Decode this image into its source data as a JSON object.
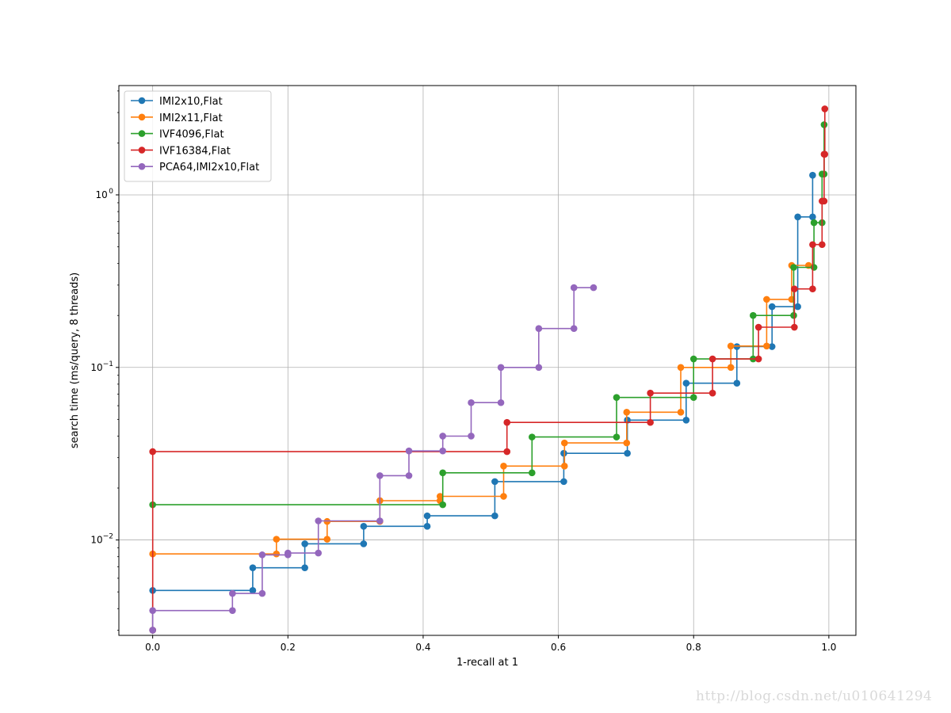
{
  "chart_data": {
    "type": "line",
    "style": "step",
    "xlabel": "1-recall at 1",
    "ylabel": "search time (ms/query, 8 threads)",
    "xlim": [
      -0.05,
      1.04
    ],
    "ylim": [
      0.0028,
      4.3
    ],
    "yscale": "log",
    "xticks": [
      {
        "value": 0.0,
        "label": "0.0"
      },
      {
        "value": 0.2,
        "label": "0.2"
      },
      {
        "value": 0.4,
        "label": "0.4"
      },
      {
        "value": 0.6,
        "label": "0.6"
      },
      {
        "value": 0.8,
        "label": "0.8"
      },
      {
        "value": 1.0,
        "label": "1.0"
      }
    ],
    "yticks": [
      {
        "value": 0.01,
        "label": "10",
        "exp": "−2"
      },
      {
        "value": 0.1,
        "label": "10",
        "exp": "−1"
      },
      {
        "value": 1,
        "label": "10",
        "exp": "0"
      }
    ],
    "grid": true,
    "legend_position": "top-left",
    "series": [
      {
        "name": "IMI2x10,Flat",
        "color": "#1f77b4",
        "points": [
          [
            0.0,
            0.003
          ],
          [
            0.0,
            0.0051
          ],
          [
            0.148,
            0.0051
          ],
          [
            0.148,
            0.0069
          ],
          [
            0.225,
            0.0069
          ],
          [
            0.225,
            0.0095
          ],
          [
            0.312,
            0.0095
          ],
          [
            0.312,
            0.012
          ],
          [
            0.406,
            0.012
          ],
          [
            0.406,
            0.0138
          ],
          [
            0.506,
            0.0138
          ],
          [
            0.506,
            0.0218
          ],
          [
            0.608,
            0.0218
          ],
          [
            0.608,
            0.0318
          ],
          [
            0.702,
            0.0318
          ],
          [
            0.702,
            0.0495
          ],
          [
            0.789,
            0.0495
          ],
          [
            0.789,
            0.081
          ],
          [
            0.864,
            0.081
          ],
          [
            0.864,
            0.132
          ],
          [
            0.916,
            0.132
          ],
          [
            0.916,
            0.225
          ],
          [
            0.954,
            0.225
          ],
          [
            0.954,
            0.745
          ],
          [
            0.976,
            0.745
          ],
          [
            0.976,
            1.3
          ]
        ]
      },
      {
        "name": "IMI2x11,Flat",
        "color": "#ff7f0e",
        "points": [
          [
            0.0,
            0.0083
          ],
          [
            0.183,
            0.0083
          ],
          [
            0.183,
            0.0101
          ],
          [
            0.258,
            0.0101
          ],
          [
            0.258,
            0.0128
          ],
          [
            0.336,
            0.0128
          ],
          [
            0.336,
            0.0169
          ],
          [
            0.425,
            0.0169
          ],
          [
            0.425,
            0.0179
          ],
          [
            0.519,
            0.0179
          ],
          [
            0.519,
            0.0268
          ],
          [
            0.609,
            0.0268
          ],
          [
            0.609,
            0.0365
          ],
          [
            0.701,
            0.0365
          ],
          [
            0.701,
            0.055
          ],
          [
            0.781,
            0.055
          ],
          [
            0.781,
            0.1
          ],
          [
            0.855,
            0.1
          ],
          [
            0.855,
            0.133
          ],
          [
            0.908,
            0.133
          ],
          [
            0.908,
            0.248
          ],
          [
            0.945,
            0.248
          ],
          [
            0.945,
            0.39
          ],
          [
            0.97,
            0.39
          ]
        ]
      },
      {
        "name": "IVF4096,Flat",
        "color": "#2ca02c",
        "points": [
          [
            0.0,
            0.016
          ],
          [
            0.429,
            0.016
          ],
          [
            0.429,
            0.0245
          ],
          [
            0.561,
            0.0245
          ],
          [
            0.561,
            0.0395
          ],
          [
            0.686,
            0.0395
          ],
          [
            0.686,
            0.067
          ],
          [
            0.8,
            0.067
          ],
          [
            0.8,
            0.112
          ],
          [
            0.888,
            0.112
          ],
          [
            0.888,
            0.2
          ],
          [
            0.948,
            0.2
          ],
          [
            0.948,
            0.38
          ],
          [
            0.978,
            0.38
          ],
          [
            0.978,
            0.69
          ],
          [
            0.99,
            0.69
          ],
          [
            0.99,
            1.32
          ],
          [
            0.993,
            1.32
          ],
          [
            0.993,
            2.55
          ]
        ]
      },
      {
        "name": "IVF16384,Flat",
        "color": "#d62728",
        "points": [
          [
            0.0,
            0.003
          ],
          [
            0.0,
            0.0325
          ],
          [
            0.524,
            0.0325
          ],
          [
            0.524,
            0.048
          ],
          [
            0.736,
            0.048
          ],
          [
            0.736,
            0.071
          ],
          [
            0.828,
            0.071
          ],
          [
            0.828,
            0.112
          ],
          [
            0.896,
            0.112
          ],
          [
            0.896,
            0.171
          ],
          [
            0.949,
            0.171
          ],
          [
            0.949,
            0.285
          ],
          [
            0.976,
            0.285
          ],
          [
            0.976,
            0.515
          ],
          [
            0.99,
            0.515
          ],
          [
            0.99,
            0.92
          ],
          [
            0.993,
            0.92
          ],
          [
            0.993,
            1.72
          ],
          [
            0.994,
            1.72
          ],
          [
            0.994,
            3.15
          ]
        ]
      },
      {
        "name": "PCA64,IMI2x10,Flat",
        "color": "#9467bd",
        "points": [
          [
            0.0,
            0.003
          ],
          [
            0.0,
            0.0039
          ],
          [
            0.118,
            0.0039
          ],
          [
            0.118,
            0.0049
          ],
          [
            0.162,
            0.0049
          ],
          [
            0.162,
            0.0082
          ],
          [
            0.2,
            0.0082
          ],
          [
            0.2,
            0.0084
          ],
          [
            0.245,
            0.0084
          ],
          [
            0.245,
            0.0129
          ],
          [
            0.336,
            0.0129
          ],
          [
            0.336,
            0.0236
          ],
          [
            0.379,
            0.0236
          ],
          [
            0.379,
            0.0328
          ],
          [
            0.429,
            0.0328
          ],
          [
            0.429,
            0.04
          ],
          [
            0.471,
            0.04
          ],
          [
            0.471,
            0.0625
          ],
          [
            0.515,
            0.0625
          ],
          [
            0.515,
            0.1
          ],
          [
            0.571,
            0.1
          ],
          [
            0.571,
            0.168
          ],
          [
            0.623,
            0.168
          ],
          [
            0.623,
            0.29
          ],
          [
            0.652,
            0.29
          ]
        ]
      }
    ]
  },
  "watermark": "http://blog.csdn.net/u010641294"
}
